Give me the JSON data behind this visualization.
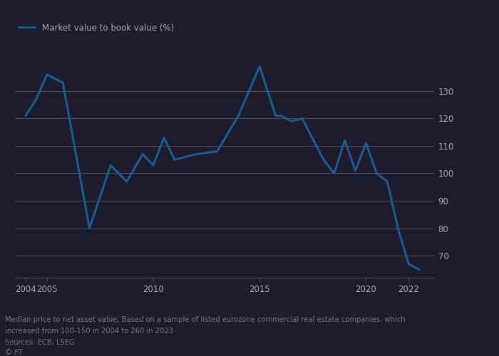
{
  "x": [
    2004,
    2004.5,
    2005,
    2005.75,
    2007,
    2008,
    2008.75,
    2009.5,
    2010,
    2010.5,
    2011,
    2012,
    2013,
    2014,
    2015,
    2015.75,
    2016,
    2016.5,
    2017,
    2018,
    2018.5,
    2019,
    2019.5,
    2020,
    2020.5,
    2021,
    2021.5,
    2022,
    2022.5
  ],
  "y": [
    121,
    127,
    136,
    133,
    80,
    103,
    97,
    107,
    103,
    113,
    105,
    107,
    108,
    121,
    139,
    121,
    121,
    119,
    120,
    105,
    100,
    112,
    101,
    111,
    100,
    97,
    80,
    67,
    65
  ],
  "line_color": "#1f5c8b",
  "legend_label": "Market value to book value (%)",
  "yticks": [
    70,
    80,
    90,
    100,
    110,
    120,
    130
  ],
  "xticks": [
    2004,
    2005,
    2010,
    2015,
    2020,
    2022
  ],
  "xlim": [
    2003.5,
    2023.2
  ],
  "ylim": [
    62,
    145
  ],
  "footnote1": "Median price to net asset value; Based on a sample of listed eurozone commercial real estate companies, which",
  "footnote2": "increased from 100-150 in 2004 to 260 in 2023",
  "footnote3": "Sources: ECB, LSEG",
  "footnote4": "© FT",
  "bg_color": "#1a1a2e",
  "text_color": "#b0b0b0",
  "grid_color": "#3a3a4a",
  "footnote_color": "#555555"
}
